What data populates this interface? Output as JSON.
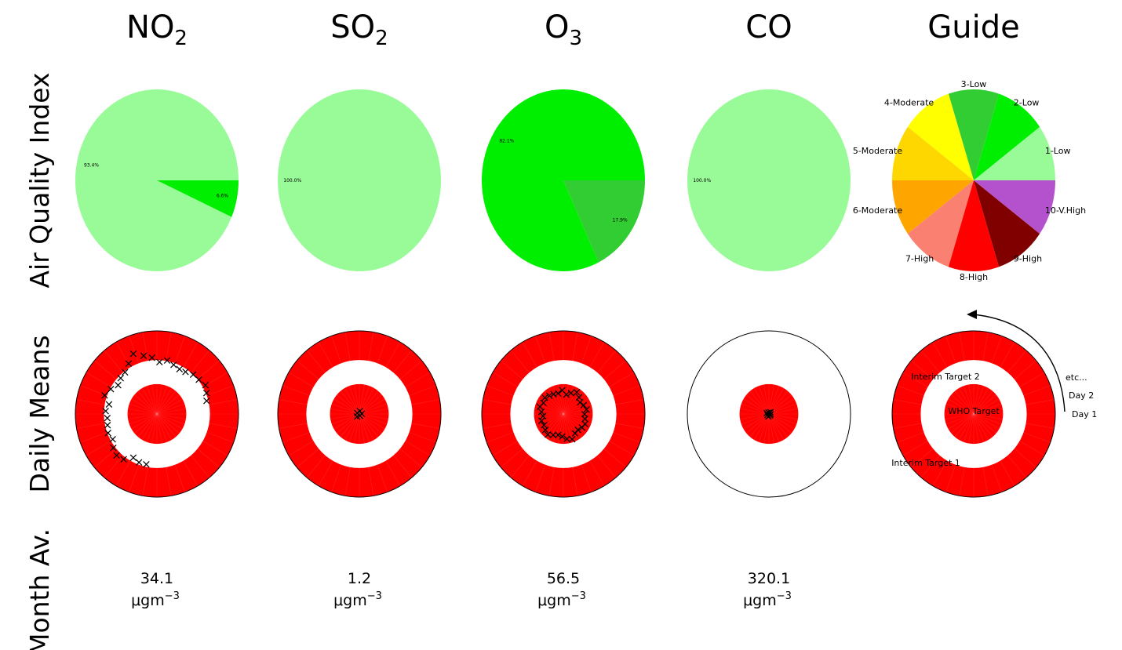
{
  "columns": [
    {
      "key": "no2",
      "title": "NO",
      "sub": "2"
    },
    {
      "key": "so2",
      "title": "SO",
      "sub": "2"
    },
    {
      "key": "o3",
      "title": "O",
      "sub": "3"
    },
    {
      "key": "co",
      "title": "CO",
      "sub": ""
    },
    {
      "key": "guide",
      "title": "Guide",
      "sub": ""
    }
  ],
  "row_labels": [
    "Air Quality Index",
    "Daily Means",
    "Month Av."
  ],
  "unit": {
    "base": "μgm",
    "exp": "−3"
  },
  "colors": {
    "1-Low": "#98fb98",
    "2-Low": "#00ee00",
    "3-Low": "#32cd32",
    "4-Moderate": "#ffff00",
    "5-Moderate": "#ffd700",
    "6-Moderate": "#ffa500",
    "7-High": "#fa8072",
    "8-High": "#ff0000",
    "9-High": "#800000",
    "10-V.High": "#b452cd",
    "target_red": "#ff0000"
  },
  "guide_labels": {
    "rings": [
      "Interim Target 1",
      "Interim Target 2",
      "WHO Target"
    ],
    "days": [
      "etc...",
      "Day 2",
      "Day 1"
    ]
  },
  "chart_data": [
    {
      "type": "pie",
      "pollutant": "NO2",
      "labels": [
        "1-Low",
        "2-Low"
      ],
      "values": [
        93.4,
        6.6
      ],
      "pct_text": [
        "93.4%",
        "6.6%"
      ]
    },
    {
      "type": "pie",
      "pollutant": "SO2",
      "labels": [
        "1-Low"
      ],
      "values": [
        100.0
      ],
      "pct_text": [
        "100.0%"
      ]
    },
    {
      "type": "pie",
      "pollutant": "O3",
      "labels": [
        "2-Low",
        "3-Low"
      ],
      "values": [
        82.1,
        17.9
      ],
      "pct_text": [
        "82.1%",
        "17.9%"
      ]
    },
    {
      "type": "pie",
      "pollutant": "CO",
      "labels": [
        "1-Low"
      ],
      "values": [
        100.0
      ],
      "pct_text": [
        "100.0%"
      ]
    },
    {
      "type": "pie",
      "pollutant": "Guide",
      "labels": [
        "1-Low",
        "2-Low",
        "3-Low",
        "4-Moderate",
        "5-Moderate",
        "6-Moderate",
        "7-High",
        "8-High",
        "9-High",
        "10-V.High"
      ],
      "values": [
        10,
        10,
        10,
        10,
        10,
        10,
        10,
        10,
        10,
        10
      ]
    },
    {
      "type": "scatter",
      "pollutant": "NO2",
      "month_average": "34.1",
      "rings": [
        "red",
        "white",
        "red"
      ],
      "daily_points": [
        {
          "r": 0.63,
          "theta": 0.26
        },
        {
          "r": 0.66,
          "theta": 0.4
        },
        {
          "r": 0.69,
          "theta": 0.53
        },
        {
          "r": 0.66,
          "theta": 0.68
        },
        {
          "r": 0.65,
          "theta": 0.82
        },
        {
          "r": 0.62,
          "theta": 0.97
        },
        {
          "r": 0.61,
          "theta": 1.1
        },
        {
          "r": 0.63,
          "theta": 1.24
        },
        {
          "r": 0.66,
          "theta": 1.38
        },
        {
          "r": 0.63,
          "theta": 1.52
        },
        {
          "r": 0.68,
          "theta": 1.66
        },
        {
          "r": 0.72,
          "theta": 1.8
        },
        {
          "r": 0.78,
          "theta": 1.95
        },
        {
          "r": 0.7,
          "theta": 2.09
        },
        {
          "r": 0.64,
          "theta": 2.23
        },
        {
          "r": 0.62,
          "theta": 2.37
        },
        {
          "r": 0.59,
          "theta": 2.51
        },
        {
          "r": 0.64,
          "theta": 2.65
        },
        {
          "r": 0.68,
          "theta": 2.8
        },
        {
          "r": 0.6,
          "theta": 2.94
        },
        {
          "r": 0.63,
          "theta": 3.08
        },
        {
          "r": 0.61,
          "theta": 3.22
        },
        {
          "r": 0.62,
          "theta": 3.36
        },
        {
          "r": 0.64,
          "theta": 3.5
        },
        {
          "r": 0.62,
          "theta": 3.65
        },
        {
          "r": 0.67,
          "theta": 3.79
        },
        {
          "r": 0.7,
          "theta": 3.93
        },
        {
          "r": 0.68,
          "theta": 4.07
        },
        {
          "r": 0.6,
          "theta": 4.21
        },
        {
          "r": 0.62,
          "theta": 4.35
        },
        {
          "r": 0.62,
          "theta": 4.5
        }
      ]
    },
    {
      "type": "scatter",
      "pollutant": "SO2",
      "month_average": "1.2",
      "rings": [
        "red",
        "white",
        "red"
      ],
      "daily_points": [
        {
          "r": 0.03,
          "theta": 0.2
        },
        {
          "r": 0.04,
          "theta": 1.4
        },
        {
          "r": 0.03,
          "theta": 2.6
        },
        {
          "r": 0.04,
          "theta": 3.9
        },
        {
          "r": 0.02,
          "theta": 5.1
        }
      ]
    },
    {
      "type": "scatter",
      "pollutant": "O3",
      "month_average": "56.5",
      "rings": [
        "red",
        "white",
        "red"
      ],
      "daily_points": [
        {
          "r": 0.26,
          "theta": 0.0
        },
        {
          "r": 0.29,
          "theta": 0.2
        },
        {
          "r": 0.27,
          "theta": 0.41
        },
        {
          "r": 0.25,
          "theta": 0.61
        },
        {
          "r": 0.28,
          "theta": 0.81
        },
        {
          "r": 0.31,
          "theta": 1.01
        },
        {
          "r": 0.27,
          "theta": 1.22
        },
        {
          "r": 0.24,
          "theta": 1.42
        },
        {
          "r": 0.29,
          "theta": 1.62
        },
        {
          "r": 0.26,
          "theta": 1.82
        },
        {
          "r": 0.27,
          "theta": 2.03
        },
        {
          "r": 0.28,
          "theta": 2.23
        },
        {
          "r": 0.3,
          "theta": 2.43
        },
        {
          "r": 0.28,
          "theta": 2.63
        },
        {
          "r": 0.3,
          "theta": 2.84
        },
        {
          "r": 0.27,
          "theta": 3.04
        },
        {
          "r": 0.25,
          "theta": 3.24
        },
        {
          "r": 0.28,
          "theta": 3.44
        },
        {
          "r": 0.27,
          "theta": 3.65
        },
        {
          "r": 0.29,
          "theta": 3.85
        },
        {
          "r": 0.31,
          "theta": 4.05
        },
        {
          "r": 0.28,
          "theta": 4.25
        },
        {
          "r": 0.26,
          "theta": 4.46
        },
        {
          "r": 0.27,
          "theta": 4.66
        },
        {
          "r": 0.3,
          "theta": 4.86
        },
        {
          "r": 0.32,
          "theta": 5.06
        },
        {
          "r": 0.27,
          "theta": 5.27
        },
        {
          "r": 0.26,
          "theta": 5.47
        },
        {
          "r": 0.28,
          "theta": 5.67
        },
        {
          "r": 0.29,
          "theta": 5.87
        },
        {
          "r": 0.27,
          "theta": 6.08
        }
      ]
    },
    {
      "type": "scatter",
      "pollutant": "CO",
      "month_average": "320.1",
      "rings": [
        "white",
        "white",
        "red"
      ],
      "daily_points": [
        {
          "r": 0.02,
          "theta": 0.0
        },
        {
          "r": 0.03,
          "theta": 0.9
        },
        {
          "r": 0.02,
          "theta": 1.8
        },
        {
          "r": 0.03,
          "theta": 2.7
        },
        {
          "r": 0.02,
          "theta": 3.6
        },
        {
          "r": 0.03,
          "theta": 4.5
        },
        {
          "r": 0.02,
          "theta": 5.4
        }
      ]
    },
    {
      "type": "scatter",
      "pollutant": "Guide",
      "rings": [
        "red",
        "white",
        "red"
      ],
      "daily_points": []
    }
  ]
}
